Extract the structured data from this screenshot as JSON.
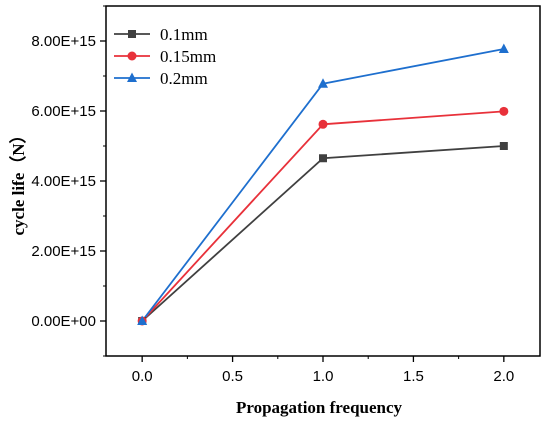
{
  "chart_data": {
    "type": "line",
    "title": "",
    "xlabel": "Propagation frequency",
    "ylabel": "cycle life（N）",
    "x": [
      0.0,
      1.0,
      2.0
    ],
    "xlim": [
      -0.2,
      2.2
    ],
    "ylim": [
      -1000000000000000.0,
      9000000000000000.0
    ],
    "xticks": [
      0.0,
      0.5,
      1.0,
      1.5,
      2.0
    ],
    "xtick_labels": [
      "0.0",
      "0.5",
      "1.0",
      "1.5",
      "2.0"
    ],
    "yticks": [
      0,
      2000000000000000.0,
      4000000000000000.0,
      6000000000000000.0,
      8000000000000000.0
    ],
    "ytick_labels": [
      "0.00E+00",
      "2.00E+15",
      "4.00E+15",
      "6.00E+15",
      "8.00E+15"
    ],
    "grid": false,
    "legend_position": "top-left",
    "series": [
      {
        "name": "0.1mm",
        "color": "#404040",
        "marker": "square",
        "values": [
          0,
          4650000000000000.0,
          5000000000000000.0
        ]
      },
      {
        "name": "0.15mm",
        "color": "#e8313a",
        "marker": "circle",
        "values": [
          0,
          5620000000000000.0,
          5990000000000000.0
        ]
      },
      {
        "name": "0.2mm",
        "color": "#1e6fce",
        "marker": "triangle",
        "values": [
          0,
          6780000000000000.0,
          7770000000000000.0
        ]
      }
    ]
  }
}
